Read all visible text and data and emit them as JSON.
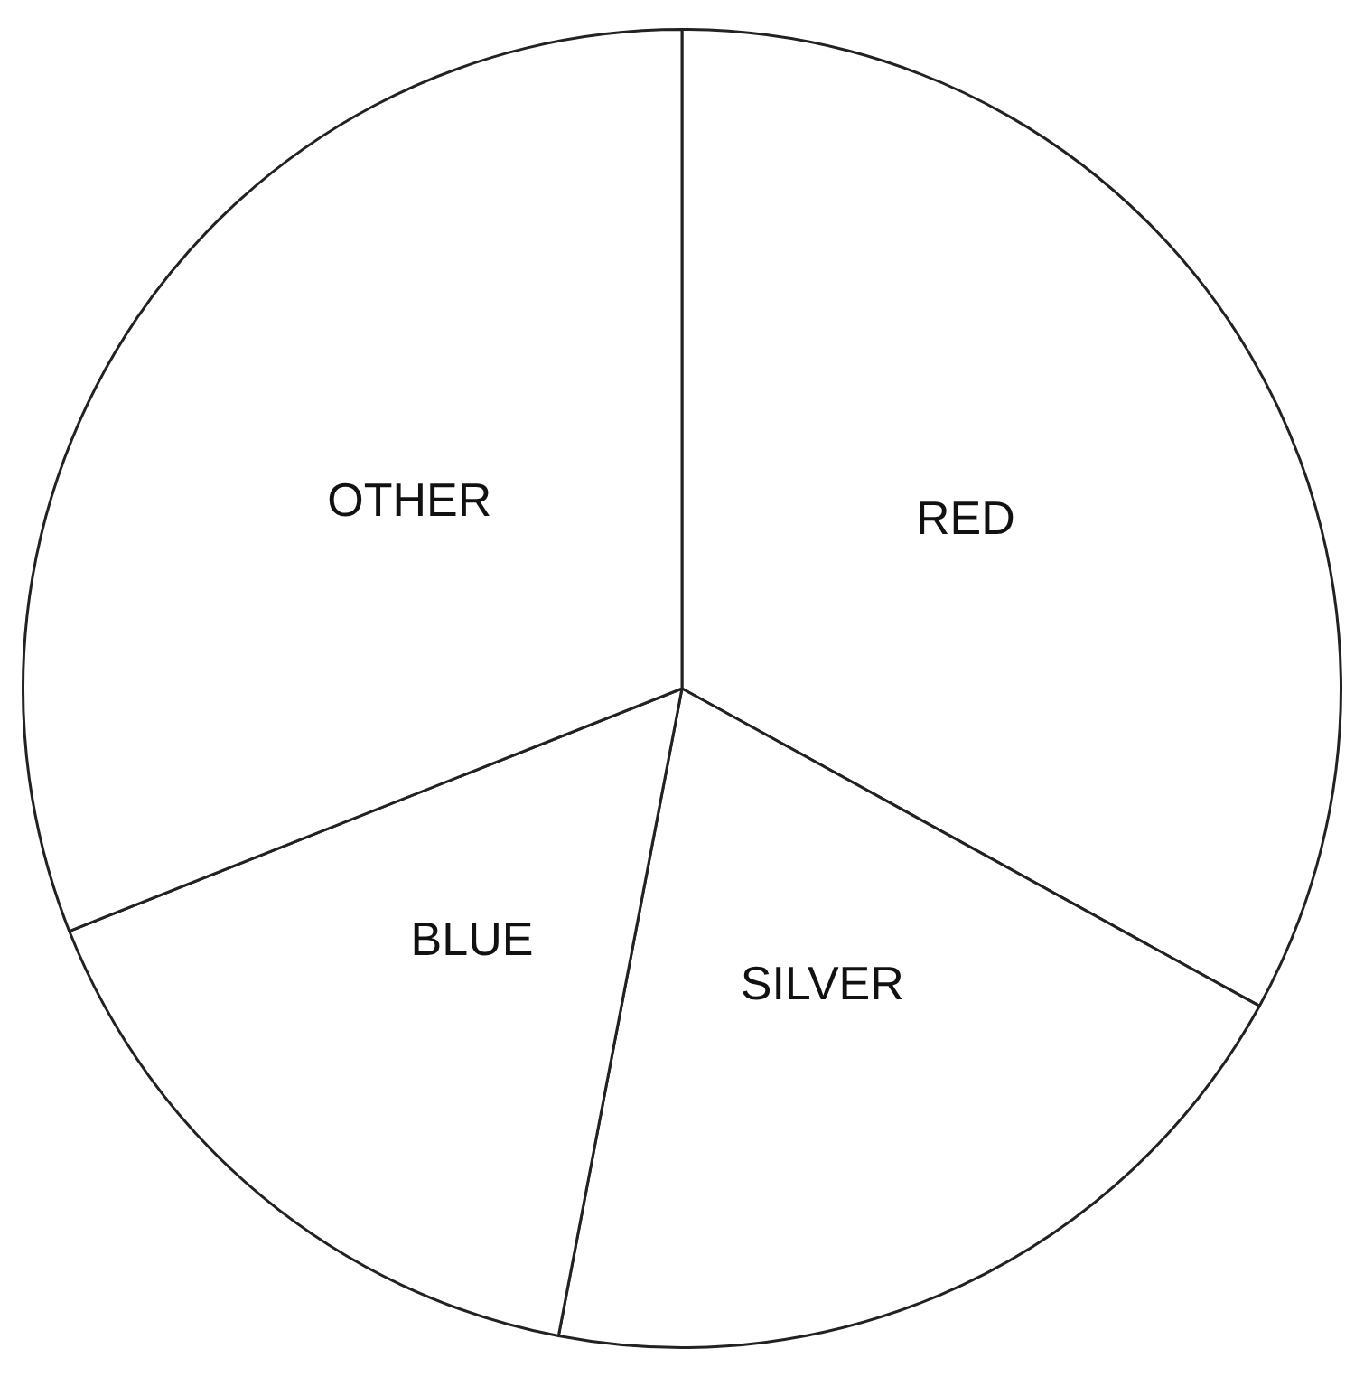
{
  "chart_data": {
    "type": "pie",
    "categories": [
      "RED",
      "SILVER",
      "BLUE",
      "OTHER"
    ],
    "values": [
      33,
      20,
      16,
      31
    ],
    "colors": [
      "#ffffff",
      "#ffffff",
      "#ffffff",
      "#ffffff"
    ],
    "legend": false
  }
}
